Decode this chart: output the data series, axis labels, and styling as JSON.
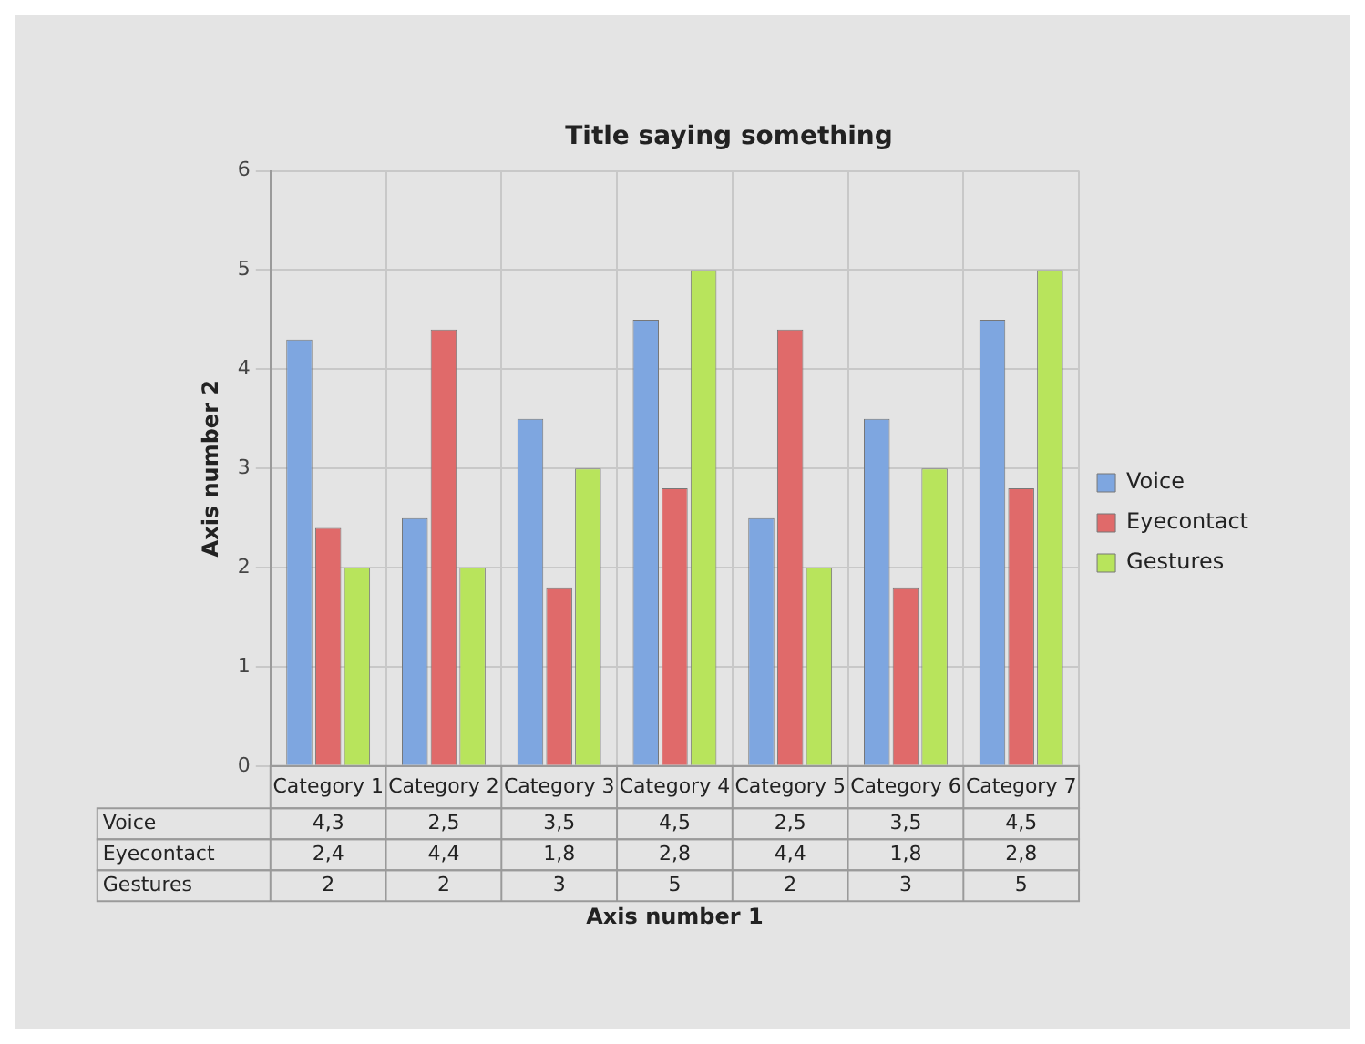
{
  "chart_data": {
    "type": "bar",
    "title": "Title saying something",
    "xlabel": "Axis number 1",
    "ylabel": "Axis number 2",
    "categories": [
      "Category 1",
      "Category 2",
      "Category 3",
      "Category 4",
      "Category 5",
      "Category 6",
      "Category 7"
    ],
    "series": [
      {
        "name": "Voice",
        "color": "#7ea6e0",
        "values": [
          4.3,
          2.5,
          3.5,
          4.5,
          2.5,
          3.5,
          4.5
        ],
        "value_labels": [
          "4,3",
          "2,5",
          "3,5",
          "4,5",
          "2,5",
          "3,5",
          "4,5"
        ]
      },
      {
        "name": "Eyecontact",
        "color": "#e06a6a",
        "values": [
          2.4,
          4.4,
          1.8,
          2.8,
          4.4,
          1.8,
          2.8
        ],
        "value_labels": [
          "2,4",
          "4,4",
          "1,8",
          "2,8",
          "4,4",
          "1,8",
          "2,8"
        ]
      },
      {
        "name": "Gestures",
        "color": "#b8e45c",
        "values": [
          2,
          2,
          3,
          5,
          2,
          3,
          5
        ],
        "value_labels": [
          "2",
          "2",
          "3",
          "5",
          "2",
          "3",
          "5"
        ]
      }
    ],
    "ylim": [
      0,
      6
    ],
    "yticks": [
      0,
      1,
      2,
      3,
      4,
      5,
      6
    ],
    "grid": true,
    "legend": "right"
  }
}
